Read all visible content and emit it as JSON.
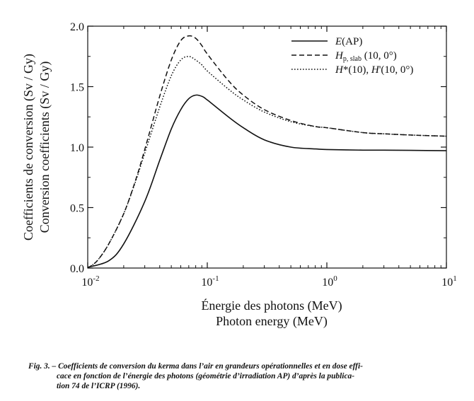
{
  "chart_data": {
    "type": "line",
    "x_scale": "log",
    "xlim": [
      0.01,
      10
    ],
    "ylim": [
      0,
      2.0
    ],
    "x_ticks": [
      0.01,
      0.1,
      1,
      10
    ],
    "x_tick_labels": [
      {
        "base": "10",
        "exp": "-2"
      },
      {
        "base": "10",
        "exp": "-1"
      },
      {
        "base": "10",
        "exp": "0"
      },
      {
        "base": "10",
        "exp": "1"
      }
    ],
    "y_ticks": [
      0,
      0.5,
      1.0,
      1.5,
      2.0
    ],
    "y_tick_labels": [
      "0.0",
      "0.5",
      "1.0",
      "1.5",
      "2.0"
    ],
    "xlabel": [
      "Énergie des photons (MeV)",
      "Photon energy (MeV)"
    ],
    "ylabel": [
      "Coefficients de conversion (Sv / Gy)",
      "Conversion coefficients (Sv / Gy)"
    ],
    "grid": false,
    "legend_position": "top-right",
    "series": [
      {
        "legend": [
          {
            "t": "E",
            "i": true
          },
          {
            "t": "(AP)"
          }
        ],
        "style": "solid",
        "color": "#111111",
        "x": [
          0.01,
          0.015,
          0.02,
          0.03,
          0.04,
          0.05,
          0.06,
          0.07,
          0.08,
          0.09,
          0.1,
          0.15,
          0.2,
          0.3,
          0.5,
          0.8,
          1,
          2,
          3,
          5,
          10
        ],
        "y": [
          0.006,
          0.06,
          0.2,
          0.55,
          0.89,
          1.15,
          1.31,
          1.4,
          1.43,
          1.42,
          1.39,
          1.25,
          1.16,
          1.06,
          1.0,
          0.985,
          0.98,
          0.975,
          0.975,
          0.973,
          0.97
        ]
      },
      {
        "legend": [
          {
            "t": "H",
            "i": true
          },
          {
            "t": "p, slab",
            "sub": true
          },
          {
            "t": " (10, 0°)"
          }
        ],
        "style": "dashed",
        "color": "#111111",
        "x": [
          0.01,
          0.012,
          0.015,
          0.02,
          0.025,
          0.03,
          0.04,
          0.05,
          0.06,
          0.07,
          0.08,
          0.09,
          0.1,
          0.15,
          0.2,
          0.3,
          0.5,
          0.8,
          1,
          2,
          3,
          5,
          10
        ],
        "y": [
          0.0,
          0.06,
          0.2,
          0.45,
          0.72,
          0.98,
          1.42,
          1.72,
          1.88,
          1.92,
          1.9,
          1.84,
          1.77,
          1.55,
          1.43,
          1.31,
          1.22,
          1.17,
          1.16,
          1.12,
          1.11,
          1.1,
          1.09
        ]
      },
      {
        "legend": [
          {
            "t": "H",
            "i": true
          },
          {
            "t": "*(10), "
          },
          {
            "t": "H",
            "i": true
          },
          {
            "t": "'(10, 0°)"
          }
        ],
        "style": "dotted",
        "color": "#111111",
        "x": [
          0.01,
          0.012,
          0.015,
          0.02,
          0.025,
          0.03,
          0.04,
          0.05,
          0.06,
          0.07,
          0.08,
          0.09,
          0.1,
          0.15,
          0.2,
          0.3,
          0.5,
          0.8,
          1,
          2,
          3,
          5,
          10
        ],
        "y": [
          0.0,
          0.06,
          0.2,
          0.45,
          0.71,
          0.95,
          1.33,
          1.59,
          1.72,
          1.75,
          1.72,
          1.68,
          1.63,
          1.48,
          1.39,
          1.29,
          1.21,
          1.17,
          1.16,
          1.12,
          1.11,
          1.1,
          1.09
        ]
      }
    ]
  },
  "caption": {
    "lines": [
      "Fig. 3. – Coefficients de conversion du kerma dans l’air en grandeurs opérationnelles et en dose effi-",
      "cace en fonction de l’énergie des photons (géométrie d’irradiation AP) d’après la publica-",
      "tion 74 de l’ICRP (1996)."
    ]
  }
}
